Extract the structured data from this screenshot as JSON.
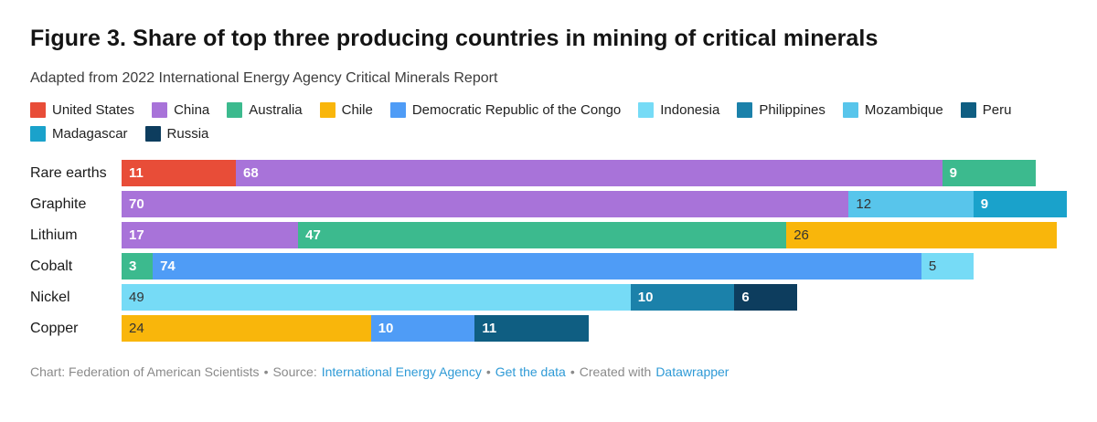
{
  "title": "Figure 3. Share of top three producing countries in mining of critical minerals",
  "subtitle": "Adapted from 2022 International Energy Agency Critical Minerals Report",
  "legend": [
    {
      "label": "United States",
      "color": "#e84d38"
    },
    {
      "label": "China",
      "color": "#a873d9"
    },
    {
      "label": "Australia",
      "color": "#3cba8e"
    },
    {
      "label": "Chile",
      "color": "#f9b60b"
    },
    {
      "label": "Democratic Republic of the Congo",
      "color": "#4f9cf6"
    },
    {
      "label": "Indonesia",
      "color": "#76dbf6"
    },
    {
      "label": "Philippines",
      "color": "#1b81aa"
    },
    {
      "label": "Mozambique",
      "color": "#58c5eb"
    },
    {
      "label": "Peru",
      "color": "#0f5e82"
    },
    {
      "label": "Madagascar",
      "color": "#1aa2cb"
    },
    {
      "label": "Russia",
      "color": "#0d3d5e"
    }
  ],
  "chart_data": {
    "type": "bar",
    "stacked": true,
    "orientation": "horizontal",
    "value_unit": "percent share",
    "axis_max_units": 91,
    "grid": false,
    "legend_position": "top",
    "categories": [
      "Rare earths",
      "Graphite",
      "Lithium",
      "Cobalt",
      "Nickel",
      "Copper"
    ],
    "rows": [
      {
        "category": "Rare earths",
        "segments": [
          {
            "country": "United States",
            "value": 11
          },
          {
            "country": "China",
            "value": 68
          },
          {
            "country": "Australia",
            "value": 9
          }
        ]
      },
      {
        "category": "Graphite",
        "segments": [
          {
            "country": "China",
            "value": 70
          },
          {
            "country": "Mozambique",
            "value": 12
          },
          {
            "country": "Madagascar",
            "value": 9
          }
        ]
      },
      {
        "category": "Lithium",
        "segments": [
          {
            "country": "China",
            "value": 17
          },
          {
            "country": "Australia",
            "value": 47
          },
          {
            "country": "Chile",
            "value": 26
          }
        ]
      },
      {
        "category": "Cobalt",
        "segments": [
          {
            "country": "Australia",
            "value": 3
          },
          {
            "country": "Democratic Republic of the Congo",
            "value": 74
          },
          {
            "country": "Indonesia",
            "value": 5
          }
        ]
      },
      {
        "category": "Nickel",
        "segments": [
          {
            "country": "Indonesia",
            "value": 49
          },
          {
            "country": "Philippines",
            "value": 10
          },
          {
            "country": "Russia",
            "value": 6
          }
        ]
      },
      {
        "category": "Copper",
        "segments": [
          {
            "country": "Chile",
            "value": 24
          },
          {
            "country": "Democratic Republic of the Congo",
            "value": 10
          },
          {
            "country": "Peru",
            "value": 11
          }
        ]
      }
    ]
  },
  "footer": {
    "chart_credit": "Chart: Federation of American Scientists",
    "separator": "•",
    "source_label": "Source:",
    "source_link": "International Energy Agency",
    "get_data_link": "Get the data",
    "created_with": "Created with",
    "tool_link": "Datawrapper",
    "link_color": "#2e9ad6",
    "text_color": "#8a8a8a"
  }
}
